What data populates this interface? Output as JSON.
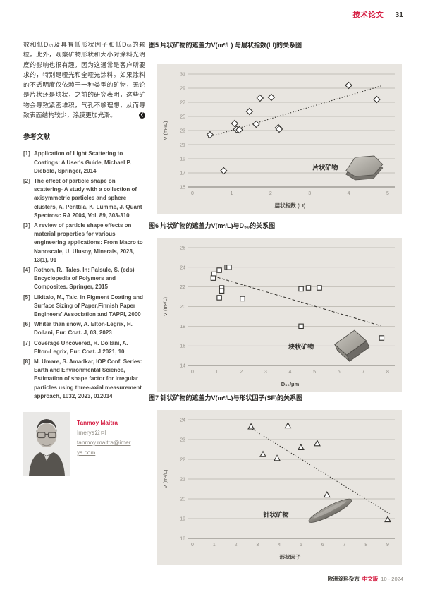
{
  "colors": {
    "accent": "#d62246",
    "panel_bg": "#e8e5e0",
    "grid": "#b6b2aa",
    "axis": "#7a766f",
    "trend": "#3a3833",
    "marker": "#34322e"
  },
  "header": {
    "section_label": "技术论文",
    "page_number": "31"
  },
  "article": {
    "body_text": "数和低D₅₀及具有低形状因子和低D₅₀的颗粒。此外，观察矿物形状和大小对涂料光滑度的影响也很有趣，因为这通常是客户所要求的，特别是哑光和全哑光涂料。如果涂料的不透明度仅依赖于一种类型的矿物，无论是片状还是块状，之前的研究表明，这些矿物会导致紧密堆积，气孔不够理想，从而导致表面结构较少，涂膜更加光滑。",
    "end_mark": "❮"
  },
  "references": {
    "heading": "参考文献",
    "items": [
      {
        "num": "[1]",
        "text": "Application of Light Scattering to Coatings: A User's Guide, Michael P. Diebold, Springer, 2014"
      },
      {
        "num": "[2]",
        "text": "The effect of particle shape on scattering- A study with a collection of axisymmetric particles and sphere clusters, A. Penttila, K. Lumme, J. Quant Spectrosc RA 2004, Vol. 89, 303-310"
      },
      {
        "num": "[3]",
        "text": "A review of particle shape effects on material properties for various engineering applications:  From Macro to Nanoscale, U. Ulusoy, Minerals, 2023, 13(1), 91"
      },
      {
        "num": "[4]",
        "text": "Rothon, R., Talcs. In: Palsule, S. (eds) Encyclopedia of Polymers and Composites. Springer, 2015"
      },
      {
        "num": "[5]",
        "text": "Likitalo, M., Talc, in Pigment Coating and Surface Sizing of Paper,Finnish Paper Engineers' Association and TAPPI, 2000"
      },
      {
        "num": "[6]",
        "text": "Whiter than snow, A. Elton-Legrix, H. Dollani, Eur. Coat. J, 03, 2023"
      },
      {
        "num": "[7]",
        "text": "Coverage Uncovered, H. Dollani, A. Elton-Legrix, Eur. Coat. J 2021, 10"
      },
      {
        "num": "[8]",
        "text": "M. Umare, S. Amadkar, IOP Conf. Series: Earth and Environmental Science, Estimation of shape factor for irregular particles using three-axial measurement approach, 1032, 2023, 012014"
      }
    ]
  },
  "author": {
    "name": "Tanmoy Maitra",
    "company": "Imerys公司",
    "email": "tanmoy.maitra@imerys.com"
  },
  "footer": {
    "journal": "欧洲涂料杂志",
    "edition": "中文版",
    "issue": "10 - 2024"
  },
  "chart_data": [
    {
      "type": "scatter",
      "title": "图5 片状矿物的遮盖力V(m²/L) 与层状指数(LI)的关系图",
      "xlabel": "层状指数 (LI)",
      "ylabel": "V (m²/L)",
      "xlim": [
        0,
        5
      ],
      "xticks": [
        0,
        1,
        2,
        3,
        4,
        5
      ],
      "ylim": [
        15,
        31
      ],
      "yticks": [
        15,
        17,
        19,
        21,
        23,
        25,
        27,
        29,
        31
      ],
      "grid": "horizontal",
      "legend": "none",
      "marker": "diamond",
      "points": [
        [
          0.45,
          22.4
        ],
        [
          0.8,
          17.3
        ],
        [
          1.08,
          24.0
        ],
        [
          1.13,
          23.15
        ],
        [
          1.2,
          23.1
        ],
        [
          1.46,
          25.7
        ],
        [
          1.63,
          23.9
        ],
        [
          1.73,
          27.6
        ],
        [
          2.02,
          27.7
        ],
        [
          2.2,
          23.4
        ],
        [
          2.22,
          23.2
        ],
        [
          4.0,
          29.4
        ],
        [
          4.72,
          27.4
        ]
      ],
      "trend": {
        "x1": 0.4,
        "y1": 22.05,
        "x2": 4.85,
        "y2": 29.35,
        "style": "dotted"
      },
      "annotation": {
        "text": "片状矿物",
        "x": 3.4,
        "y": 17.75
      },
      "icon": {
        "name": "platelet-icon",
        "x": 4.4,
        "y": 17.9
      }
    },
    {
      "type": "scatter",
      "title": "图6 片状矿物的遮盖力V(m²/L)与D₅₀的关系图",
      "xlabel": "D₅₀/μm",
      "ylabel": "V (m²/L)",
      "xlim": [
        0,
        8
      ],
      "xticks": [
        0,
        1,
        2,
        3,
        4,
        5,
        6,
        7,
        8
      ],
      "ylim": [
        14,
        26
      ],
      "yticks": [
        14,
        16,
        18,
        20,
        22,
        24,
        26
      ],
      "grid": "horizontal",
      "legend": "none",
      "marker": "square",
      "points": [
        [
          0.88,
          23.3
        ],
        [
          0.85,
          22.9
        ],
        [
          1.1,
          23.7
        ],
        [
          1.42,
          24.0
        ],
        [
          1.5,
          24.0
        ],
        [
          1.2,
          21.9
        ],
        [
          1.2,
          21.6
        ],
        [
          1.1,
          20.9
        ],
        [
          2.05,
          20.8
        ],
        [
          4.45,
          21.8
        ],
        [
          4.75,
          21.9
        ],
        [
          5.2,
          21.9
        ],
        [
          4.45,
          18.0
        ],
        [
          7.75,
          16.8
        ]
      ],
      "trend": {
        "x1": 0.85,
        "y1": 23.1,
        "x2": 7.7,
        "y2": 18.05,
        "style": "dashed"
      },
      "annotation": {
        "text": "块状矿物",
        "x": 4.45,
        "y": 15.9
      },
      "icon": {
        "name": "block-icon",
        "x": 6.55,
        "y": 16.0
      }
    },
    {
      "type": "scatter",
      "title": "图7 针状矿物的遮盖力V(m²/L)与形状因子(SF)的关系图",
      "xlabel": "形状因子",
      "ylabel": "V (m²/L)",
      "xlim": [
        0,
        9
      ],
      "xticks": [
        0,
        1,
        2,
        3,
        4,
        5,
        6,
        7,
        8,
        9
      ],
      "ylim": [
        18,
        24
      ],
      "yticks": [
        18,
        19,
        20,
        21,
        22,
        23,
        24
      ],
      "grid": "horizontal",
      "legend": "none",
      "marker": "triangle",
      "points": [
        [
          2.7,
          23.65
        ],
        [
          4.4,
          23.7
        ],
        [
          3.25,
          22.25
        ],
        [
          3.9,
          22.05
        ],
        [
          5.0,
          22.6
        ],
        [
          5.75,
          22.8
        ],
        [
          6.2,
          20.2
        ],
        [
          9.0,
          18.95
        ]
      ],
      "trend": {
        "x1": 2.65,
        "y1": 23.6,
        "x2": 9.15,
        "y2": 19.2,
        "style": "dotted"
      },
      "annotation": {
        "text": "针状矿物",
        "x": 3.85,
        "y": 19.2
      },
      "icon": {
        "name": "needle-icon",
        "x": 6.35,
        "y": 19.4
      }
    }
  ]
}
